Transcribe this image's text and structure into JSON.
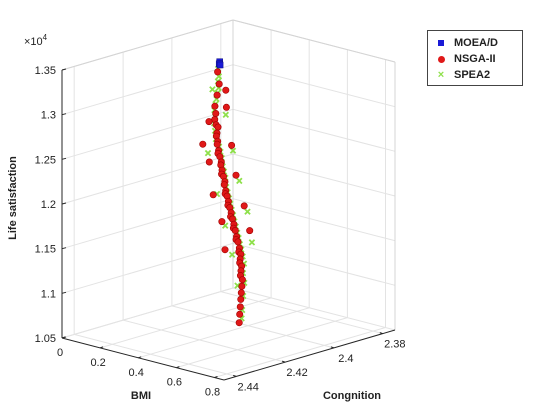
{
  "chart_data": {
    "type": "scatter3d",
    "title": "",
    "xlabel": "BMI",
    "ylabel": "Congnition",
    "zlabel": "Life satisfaction",
    "z_exponent_label": "×10",
    "z_exponent_power": "4",
    "xlim": [
      0,
      0.85
    ],
    "ylim": [
      2.375,
      2.445
    ],
    "zlim": [
      10500,
      13500
    ],
    "x_ticks": [
      "0",
      "0.2",
      "0.4",
      "0.6",
      "0.8"
    ],
    "y_ticks": [
      "2.38",
      "2.4",
      "2.42",
      "2.44"
    ],
    "z_ticks": [
      "1.05",
      "1.1",
      "1.15",
      "1.2",
      "1.25",
      "1.3",
      "1.35"
    ],
    "grid": true,
    "legend_position": "top-right",
    "series": [
      {
        "name": "MOEA/D",
        "color": "#1a1ad6",
        "marker": "square",
        "points": [
          [
            0.02,
            2.382,
            13100
          ],
          [
            0.03,
            2.383,
            13090
          ],
          [
            0.035,
            2.383,
            13080
          ]
        ]
      },
      {
        "name": "NSGA-II",
        "color": "#e01818",
        "marker": "circle",
        "points": [
          [
            0.06,
            2.386,
            13040
          ],
          [
            0.12,
            2.39,
            12970
          ],
          [
            0.16,
            2.394,
            12900
          ],
          [
            0.2,
            2.398,
            12830
          ],
          [
            0.23,
            2.4,
            12780
          ],
          [
            0.25,
            2.402,
            12740
          ],
          [
            0.27,
            2.403,
            12700
          ],
          [
            0.28,
            2.403,
            12680
          ],
          [
            0.3,
            2.405,
            12640
          ],
          [
            0.31,
            2.406,
            12620
          ],
          [
            0.33,
            2.407,
            12580
          ],
          [
            0.34,
            2.408,
            12560
          ],
          [
            0.36,
            2.409,
            12510
          ],
          [
            0.37,
            2.41,
            12490
          ],
          [
            0.38,
            2.41,
            12460
          ],
          [
            0.4,
            2.411,
            12420
          ],
          [
            0.41,
            2.412,
            12400
          ],
          [
            0.43,
            2.413,
            12360
          ],
          [
            0.44,
            2.414,
            12330
          ],
          [
            0.45,
            2.414,
            12310
          ],
          [
            0.47,
            2.415,
            12270
          ],
          [
            0.48,
            2.416,
            12250
          ],
          [
            0.5,
            2.417,
            12200
          ],
          [
            0.51,
            2.418,
            12180
          ],
          [
            0.52,
            2.418,
            12160
          ],
          [
            0.54,
            2.419,
            12120
          ],
          [
            0.55,
            2.42,
            12090
          ],
          [
            0.56,
            2.42,
            12070
          ],
          [
            0.58,
            2.421,
            12030
          ],
          [
            0.59,
            2.422,
            12000
          ],
          [
            0.6,
            2.422,
            11980
          ],
          [
            0.62,
            2.423,
            11940
          ],
          [
            0.63,
            2.424,
            11910
          ],
          [
            0.64,
            2.424,
            11890
          ],
          [
            0.66,
            2.425,
            11840
          ],
          [
            0.67,
            2.426,
            11820
          ],
          [
            0.68,
            2.426,
            11800
          ],
          [
            0.7,
            2.427,
            11750
          ],
          [
            0.71,
            2.428,
            11720
          ],
          [
            0.72,
            2.428,
            11700
          ],
          [
            0.73,
            2.429,
            11660
          ],
          [
            0.74,
            2.43,
            11630
          ],
          [
            0.75,
            2.43,
            11600
          ],
          [
            0.76,
            2.431,
            11560
          ],
          [
            0.77,
            2.432,
            11520
          ],
          [
            0.78,
            2.432,
            11480
          ],
          [
            0.79,
            2.433,
            11420
          ],
          [
            0.8,
            2.434,
            11360
          ],
          [
            0.81,
            2.435,
            11300
          ],
          [
            0.82,
            2.436,
            11230
          ],
          [
            0.83,
            2.437,
            11160
          ],
          [
            0.84,
            2.438,
            11080
          ],
          [
            0.22,
            2.402,
            12700
          ],
          [
            0.26,
            2.398,
            12850
          ],
          [
            0.35,
            2.412,
            12400
          ],
          [
            0.39,
            2.406,
            12560
          ],
          [
            0.46,
            2.419,
            12150
          ],
          [
            0.49,
            2.412,
            12330
          ],
          [
            0.57,
            2.424,
            11950
          ],
          [
            0.61,
            2.418,
            12100
          ],
          [
            0.65,
            2.429,
            11720
          ],
          [
            0.69,
            2.422,
            11900
          ],
          [
            0.18,
            2.392,
            12950
          ],
          [
            0.29,
            2.41,
            12550
          ]
        ]
      },
      {
        "name": "SPEA2",
        "color": "#8ee04a",
        "marker": "x",
        "points": [
          [
            0.05,
            2.385,
            13060
          ],
          [
            0.08,
            2.387,
            13010
          ],
          [
            0.1,
            2.389,
            12980
          ],
          [
            0.13,
            2.391,
            12940
          ],
          [
            0.15,
            2.393,
            12910
          ],
          [
            0.17,
            2.395,
            12870
          ],
          [
            0.19,
            2.397,
            12840
          ],
          [
            0.21,
            2.399,
            12800
          ],
          [
            0.24,
            2.401,
            12760
          ],
          [
            0.26,
            2.403,
            12710
          ],
          [
            0.29,
            2.405,
            12660
          ],
          [
            0.32,
            2.407,
            12600
          ],
          [
            0.35,
            2.408,
            12540
          ],
          [
            0.37,
            2.409,
            12500
          ],
          [
            0.39,
            2.41,
            12450
          ],
          [
            0.42,
            2.412,
            12390
          ],
          [
            0.44,
            2.413,
            12350
          ],
          [
            0.46,
            2.414,
            12300
          ],
          [
            0.49,
            2.416,
            12230
          ],
          [
            0.51,
            2.417,
            12190
          ],
          [
            0.53,
            2.418,
            12140
          ],
          [
            0.55,
            2.419,
            12100
          ],
          [
            0.57,
            2.42,
            12050
          ],
          [
            0.59,
            2.421,
            12010
          ],
          [
            0.61,
            2.422,
            11960
          ],
          [
            0.63,
            2.423,
            11920
          ],
          [
            0.65,
            2.424,
            11870
          ],
          [
            0.67,
            2.425,
            11830
          ],
          [
            0.69,
            2.426,
            11780
          ],
          [
            0.71,
            2.427,
            11740
          ],
          [
            0.73,
            2.428,
            11680
          ],
          [
            0.75,
            2.429,
            11620
          ],
          [
            0.77,
            2.431,
            11540
          ],
          [
            0.79,
            2.432,
            11450
          ],
          [
            0.81,
            2.434,
            11330
          ],
          [
            0.83,
            2.436,
            11200
          ],
          [
            0.84,
            2.437,
            11120
          ],
          [
            0.27,
            2.399,
            12780
          ],
          [
            0.33,
            2.411,
            12480
          ],
          [
            0.41,
            2.407,
            12520
          ],
          [
            0.48,
            2.419,
            12170
          ],
          [
            0.52,
            2.413,
            12290
          ],
          [
            0.6,
            2.425,
            11930
          ],
          [
            0.64,
            2.419,
            12060
          ],
          [
            0.7,
            2.43,
            11700
          ],
          [
            0.74,
            2.425,
            11820
          ],
          [
            0.78,
            2.434,
            11430
          ],
          [
            0.11,
            2.392,
            12920
          ]
        ]
      }
    ]
  }
}
